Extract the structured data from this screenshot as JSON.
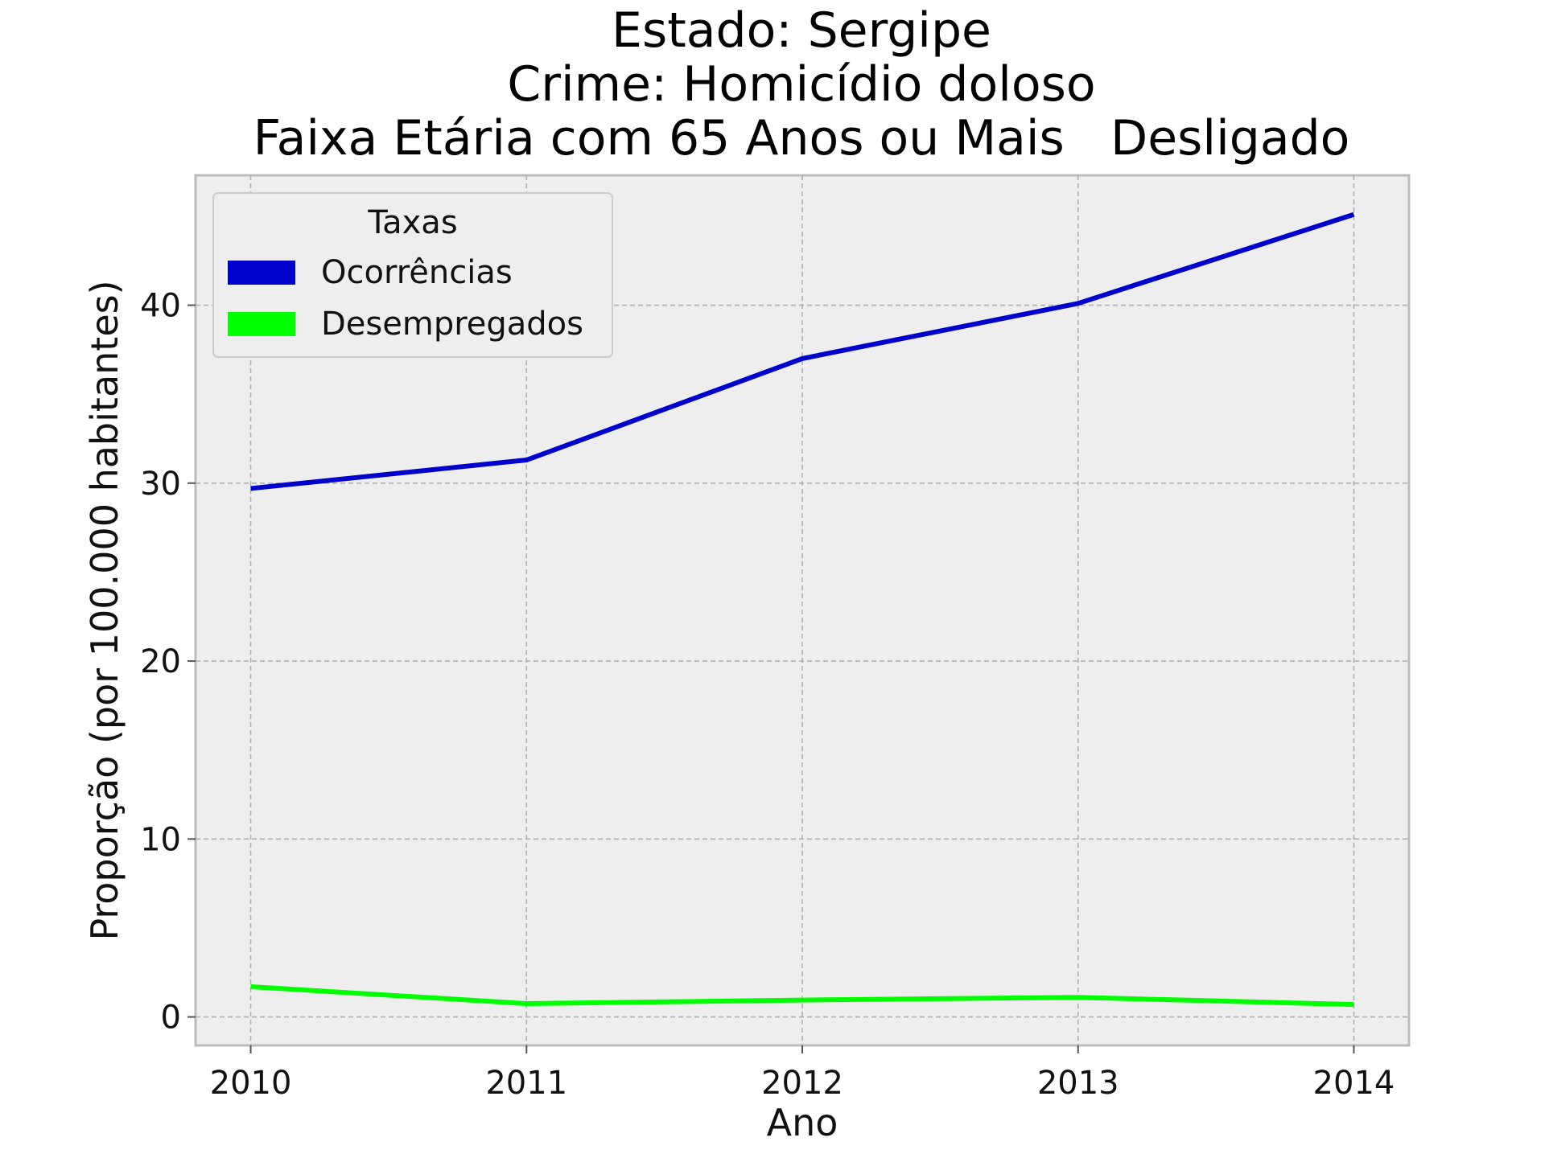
{
  "chart_data": {
    "type": "line",
    "title": "Estado: Sergipe",
    "subtitle_lines": [
      "Crime: Homicídio doloso",
      "Faixa Etária com 65 Anos ou Mais   Desligado"
    ],
    "xlabel": "Ano",
    "ylabel": "Proporção (por 100.000 habitantes)",
    "x": [
      2010,
      2011,
      2012,
      2013,
      2014
    ],
    "x_tick_labels": [
      "2010",
      "2011",
      "2012",
      "2013",
      "2014"
    ],
    "y_ticks": [
      0,
      10,
      20,
      30,
      40
    ],
    "y_tick_labels": [
      "0",
      "10",
      "20",
      "30",
      "40"
    ],
    "xlim": [
      2009.8,
      2014.2
    ],
    "ylim": [
      -1.6,
      47.3
    ],
    "grid": true,
    "legend": {
      "title": "Taxas",
      "placement": "top-left"
    },
    "series": [
      {
        "name": "Ocorrências",
        "color": "#0000cc",
        "values": [
          29.7,
          31.3,
          37.0,
          40.1,
          45.1
        ]
      },
      {
        "name": "Desempregados",
        "color": "#00ff00",
        "values": [
          1.7,
          0.75,
          0.95,
          1.1,
          0.7
        ]
      }
    ],
    "colors": {
      "plot_background": "#eeeeee",
      "frame": "#bcbcbc"
    }
  }
}
